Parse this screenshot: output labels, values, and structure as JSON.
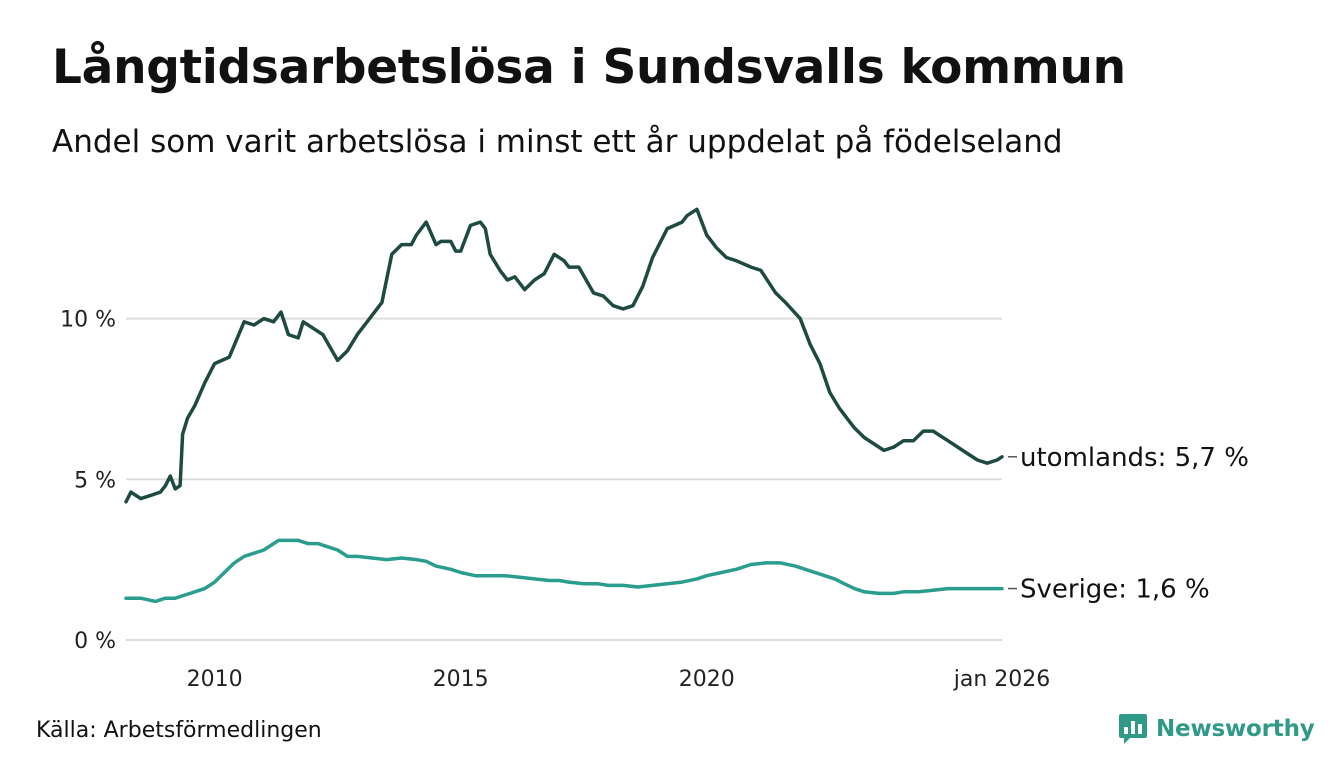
{
  "title": "Långtidsarbetslösa i Sundsvalls kommun",
  "subtitle": "Andel som varit arbetslösa i minst ett år uppdelat på födelseland",
  "source": "Källa: Arbetsförmedlingen",
  "brand": "Newsworthy",
  "colors": {
    "utomlands": "#1e4a42",
    "sverige": "#2a9d8f",
    "grid": "#dddddd",
    "brand": "#2f9a87"
  },
  "chart_data": {
    "type": "line",
    "title": "Långtidsarbetslösa i Sundsvalls kommun",
    "xlabel": "",
    "ylabel": "",
    "xlim": [
      2008.2,
      2026.0
    ],
    "ylim": [
      0,
      14
    ],
    "y_ticks": [
      {
        "value": 0,
        "label": "0 %"
      },
      {
        "value": 5,
        "label": "5 %"
      },
      {
        "value": 10,
        "label": "10 %"
      }
    ],
    "x_ticks": [
      {
        "value": 2010,
        "label": "2010"
      },
      {
        "value": 2015,
        "label": "2015"
      },
      {
        "value": 2020,
        "label": "2020"
      },
      {
        "value": 2026.0,
        "label": "jan 2026"
      }
    ],
    "grid": true,
    "legend": "end-of-line labels",
    "series": [
      {
        "name": "utomlands",
        "end_label": "utomlands: 5,7 %",
        "x": [
          2008.2,
          2008.3,
          2008.5,
          2008.7,
          2008.9,
          2009.0,
          2009.1,
          2009.2,
          2009.3,
          2009.35,
          2009.45,
          2009.6,
          2009.8,
          2010.0,
          2010.3,
          2010.6,
          2010.8,
          2011.0,
          2011.2,
          2011.35,
          2011.5,
          2011.7,
          2011.8,
          2011.9,
          2012.0,
          2012.2,
          2012.5,
          2012.7,
          2012.9,
          2013.1,
          2013.4,
          2013.6,
          2013.8,
          2014.0,
          2014.1,
          2014.3,
          2014.5,
          2014.6,
          2014.8,
          2014.9,
          2015.0,
          2015.2,
          2015.4,
          2015.5,
          2015.6,
          2015.8,
          2015.95,
          2016.1,
          2016.3,
          2016.5,
          2016.7,
          2016.9,
          2017.1,
          2017.2,
          2017.4,
          2017.7,
          2017.9,
          2018.1,
          2018.3,
          2018.5,
          2018.7,
          2018.9,
          2019.2,
          2019.5,
          2019.6,
          2019.8,
          2020.0,
          2020.2,
          2020.4,
          2020.6,
          2020.9,
          2021.1,
          2021.4,
          2021.6,
          2021.9,
          2022.1,
          2022.3,
          2022.5,
          2022.7,
          2022.9,
          2023.0,
          2023.2,
          2023.4,
          2023.6,
          2023.8,
          2024.0,
          2024.2,
          2024.4,
          2024.6,
          2024.9,
          2025.1,
          2025.3,
          2025.5,
          2025.7,
          2025.9,
          2026.0
        ],
        "values": [
          4.3,
          4.6,
          4.4,
          4.5,
          4.6,
          4.8,
          5.1,
          4.7,
          4.8,
          6.4,
          6.9,
          7.3,
          8.0,
          8.6,
          8.8,
          9.9,
          9.8,
          10.0,
          9.9,
          10.2,
          9.5,
          9.4,
          9.9,
          9.8,
          9.7,
          9.5,
          8.7,
          9.0,
          9.5,
          9.9,
          10.5,
          12.0,
          12.3,
          12.3,
          12.6,
          13.0,
          12.3,
          12.4,
          12.4,
          12.1,
          12.1,
          12.9,
          13.0,
          12.8,
          12.0,
          11.5,
          11.2,
          11.3,
          10.9,
          11.2,
          11.4,
          12.0,
          11.8,
          11.6,
          11.6,
          10.8,
          10.7,
          10.4,
          10.3,
          10.4,
          11.0,
          11.9,
          12.8,
          13.0,
          13.2,
          13.4,
          12.6,
          12.2,
          11.9,
          11.8,
          11.6,
          11.5,
          10.8,
          10.5,
          10.0,
          9.2,
          8.6,
          7.7,
          7.2,
          6.8,
          6.6,
          6.3,
          6.1,
          5.9,
          6.0,
          6.2,
          6.2,
          6.5,
          6.5,
          6.2,
          6.0,
          5.8,
          5.6,
          5.5,
          5.6,
          5.7
        ]
      },
      {
        "name": "Sverige",
        "end_label": "Sverige: 1,6 %",
        "x": [
          2008.2,
          2008.5,
          2008.8,
          2009.0,
          2009.2,
          2009.4,
          2009.6,
          2009.8,
          2010.0,
          2010.2,
          2010.4,
          2010.6,
          2010.8,
          2011.0,
          2011.2,
          2011.3,
          2011.5,
          2011.7,
          2011.9,
          2012.1,
          2012.3,
          2012.5,
          2012.7,
          2012.9,
          2013.2,
          2013.5,
          2013.8,
          2014.1,
          2014.3,
          2014.5,
          2014.8,
          2015.0,
          2015.3,
          2015.6,
          2015.9,
          2016.2,
          2016.5,
          2016.8,
          2017.0,
          2017.2,
          2017.5,
          2017.8,
          2018.0,
          2018.3,
          2018.6,
          2018.9,
          2019.2,
          2019.5,
          2019.8,
          2020.0,
          2020.3,
          2020.6,
          2020.9,
          2021.2,
          2021.5,
          2021.8,
          2022.0,
          2022.3,
          2022.6,
          2022.8,
          2023.0,
          2023.2,
          2023.5,
          2023.8,
          2024.0,
          2024.3,
          2024.6,
          2024.9,
          2025.1,
          2025.4,
          2025.7,
          2026.0
        ],
        "values": [
          1.3,
          1.3,
          1.2,
          1.3,
          1.3,
          1.4,
          1.5,
          1.6,
          1.8,
          2.1,
          2.4,
          2.6,
          2.7,
          2.8,
          3.0,
          3.1,
          3.1,
          3.1,
          3.0,
          3.0,
          2.9,
          2.8,
          2.6,
          2.6,
          2.55,
          2.5,
          2.55,
          2.5,
          2.45,
          2.3,
          2.2,
          2.1,
          2.0,
          2.0,
          2.0,
          1.95,
          1.9,
          1.85,
          1.85,
          1.8,
          1.75,
          1.75,
          1.7,
          1.7,
          1.65,
          1.7,
          1.75,
          1.8,
          1.9,
          2.0,
          2.1,
          2.2,
          2.35,
          2.4,
          2.4,
          2.3,
          2.2,
          2.05,
          1.9,
          1.75,
          1.6,
          1.5,
          1.45,
          1.45,
          1.5,
          1.5,
          1.55,
          1.6,
          1.6,
          1.6,
          1.6,
          1.6
        ]
      }
    ]
  }
}
